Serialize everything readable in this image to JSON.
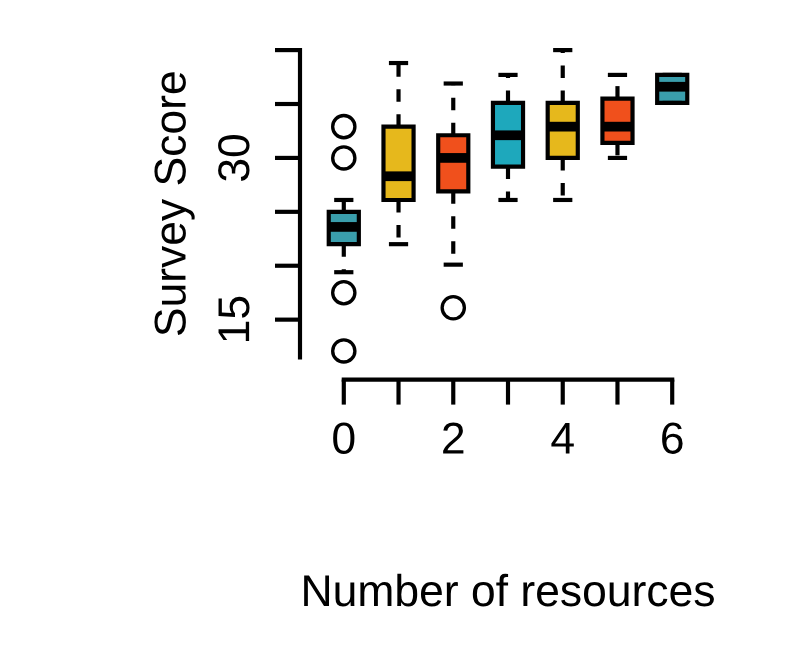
{
  "chart_data": {
    "type": "box",
    "xlabel": "Number of resources",
    "ylabel": "Survey Score",
    "categories": [
      "0",
      null,
      "2",
      null,
      "4",
      null,
      "6"
    ],
    "colors": [
      "#3a9eac",
      "#e6b81c",
      "#f0501c",
      "#1ea8bc",
      "#e6b81c",
      "#f0501c",
      "#3a9eac"
    ],
    "boxes": [
      {
        "low": 19.4,
        "q1": 22.0,
        "median": 23.6,
        "q3": 25.0,
        "high": 26.1,
        "outliers": [
          17.5,
          12.1,
          30.0,
          32.9
        ]
      },
      {
        "low": 22.0,
        "q1": 26.1,
        "median": 28.3,
        "q3": 32.9,
        "high": 38.8
      },
      {
        "low": 20.1,
        "q1": 26.9,
        "median": 30.0,
        "q3": 32.1,
        "high": 36.9,
        "outliers": [
          16.1
        ]
      },
      {
        "low": 26.1,
        "q1": 29.2,
        "median": 32.1,
        "q3": 35.1,
        "high": 37.7
      },
      {
        "low": 26.1,
        "q1": 30.0,
        "median": 32.9,
        "q3": 35.1,
        "high": 40.0
      },
      {
        "low": 30.0,
        "q1": 31.4,
        "median": 32.9,
        "q3": 35.5,
        "high": 37.7
      },
      {
        "low": 35.1,
        "q1": 35.1,
        "median": 36.6,
        "q3": 37.7,
        "high": 37.7
      }
    ],
    "ylim": [
      11.5,
      40
    ],
    "yticks": [
      15,
      {
        "value": 20,
        "label": null
      },
      {
        "value": 25,
        "label": null
      },
      30,
      {
        "value": 35,
        "label": null
      },
      {
        "value": 40,
        "label": null
      }
    ],
    "grid": false,
    "legend": false
  }
}
